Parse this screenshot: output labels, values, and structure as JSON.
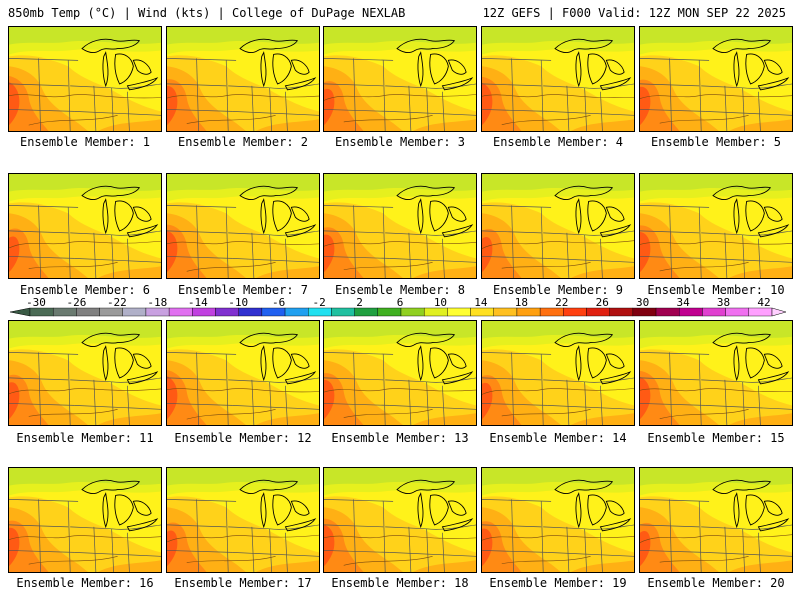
{
  "header": {
    "left": "850mb Temp (°C) | Wind (kts) | College of DuPage NEXLAB",
    "right": "12Z GEFS | F000 Valid: 12Z MON SEP 22 2025"
  },
  "members": [
    {
      "label": "Ensemble Member: 1"
    },
    {
      "label": "Ensemble Member: 2"
    },
    {
      "label": "Ensemble Member: 3"
    },
    {
      "label": "Ensemble Member: 4"
    },
    {
      "label": "Ensemble Member: 5"
    },
    {
      "label": "Ensemble Member: 6"
    },
    {
      "label": "Ensemble Member: 7"
    },
    {
      "label": "Ensemble Member: 8"
    },
    {
      "label": "Ensemble Member: 9"
    },
    {
      "label": "Ensemble Member: 10"
    },
    {
      "label": "Ensemble Member: 11"
    },
    {
      "label": "Ensemble Member: 12"
    },
    {
      "label": "Ensemble Member: 13"
    },
    {
      "label": "Ensemble Member: 14"
    },
    {
      "label": "Ensemble Member: 15"
    },
    {
      "label": "Ensemble Member: 16"
    },
    {
      "label": "Ensemble Member: 17"
    },
    {
      "label": "Ensemble Member: 18"
    },
    {
      "label": "Ensemble Member: 19"
    },
    {
      "label": "Ensemble Member: 20"
    }
  ],
  "colorbar": {
    "labels": [
      "-30",
      "-26",
      "-22",
      "-18",
      "-14",
      "-10",
      "-6",
      "-2",
      "2",
      "6",
      "10",
      "14",
      "18",
      "22",
      "26",
      "30",
      "34",
      "38",
      "42"
    ],
    "colors": [
      "#4b6b55",
      "#6a7a70",
      "#808080",
      "#9a9a9a",
      "#b0b0c8",
      "#c8a0e0",
      "#e070f0",
      "#c040e0",
      "#8030d0",
      "#3030d0",
      "#2060f0",
      "#20a0f0",
      "#20e0f0",
      "#20c0a0",
      "#20a040",
      "#40b020",
      "#90d020",
      "#e0f020",
      "#ffff30",
      "#ffe020",
      "#ffc020",
      "#ffa010",
      "#ff7010",
      "#ff4010",
      "#e02010",
      "#b01010",
      "#800010",
      "#a00050",
      "#c00090",
      "#e040d0",
      "#f070f0",
      "#ffa0ff"
    ]
  },
  "map_colors": {
    "north": "#c8e628",
    "north2": "#e6f01e",
    "yellow": "#fff21a",
    "amber": "#ffd21a",
    "orange": "#ffb014",
    "deep": "#ff8a14",
    "red": "#ff5a14"
  }
}
